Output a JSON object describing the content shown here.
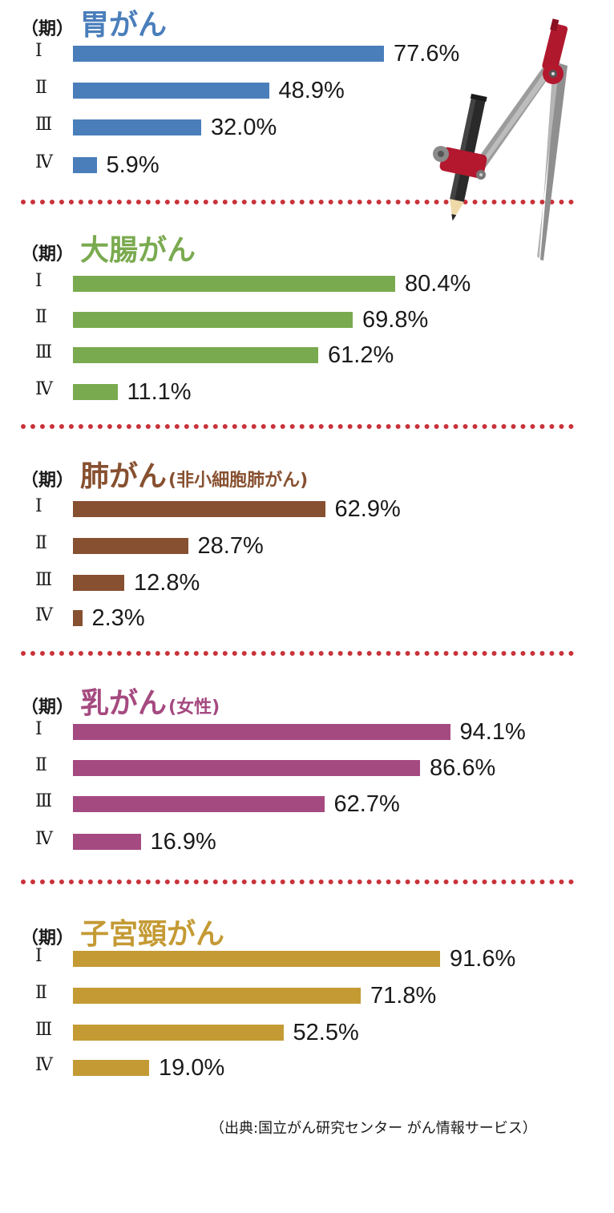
{
  "period_label": "（期）",
  "stage_labels": [
    "Ⅰ",
    "Ⅱ",
    "Ⅲ",
    "Ⅳ"
  ],
  "chart_data": [
    {
      "type": "bar",
      "title": "胃がん",
      "subtitle": "",
      "color": "#4a7ebb",
      "categories": [
        "Ⅰ",
        "Ⅱ",
        "Ⅲ",
        "Ⅳ"
      ],
      "values": [
        77.6,
        48.9,
        32.0,
        5.9
      ],
      "labels": [
        "77.6%",
        "48.9%",
        "32.0%",
        "5.9%"
      ],
      "xlim": [
        0,
        100
      ],
      "grid": false,
      "orientation": "horizontal"
    },
    {
      "type": "bar",
      "title": "大腸がん",
      "subtitle": "",
      "color": "#7aaa4f",
      "categories": [
        "Ⅰ",
        "Ⅱ",
        "Ⅲ",
        "Ⅳ"
      ],
      "values": [
        80.4,
        69.8,
        61.2,
        11.1
      ],
      "labels": [
        "80.4%",
        "69.8%",
        "61.2%",
        "11.1%"
      ],
      "xlim": [
        0,
        100
      ],
      "grid": false,
      "orientation": "horizontal"
    },
    {
      "type": "bar",
      "title": "肺がん",
      "subtitle": "(非小細胞肺がん)",
      "color": "#875030",
      "categories": [
        "Ⅰ",
        "Ⅱ",
        "Ⅲ",
        "Ⅳ"
      ],
      "values": [
        62.9,
        28.7,
        12.8,
        2.3
      ],
      "labels": [
        "62.9%",
        "28.7%",
        "12.8%",
        "2.3%"
      ],
      "xlim": [
        0,
        100
      ],
      "grid": false,
      "orientation": "horizontal"
    },
    {
      "type": "bar",
      "title": "乳がん",
      "subtitle": "(女性)",
      "color": "#a54a80",
      "categories": [
        "Ⅰ",
        "Ⅱ",
        "Ⅲ",
        "Ⅳ"
      ],
      "values": [
        94.1,
        86.6,
        62.7,
        16.9
      ],
      "labels": [
        "94.1%",
        "86.6%",
        "62.7%",
        "16.9%"
      ],
      "xlim": [
        0,
        100
      ],
      "grid": false,
      "orientation": "horizontal"
    },
    {
      "type": "bar",
      "title": "子宮頸がん",
      "subtitle": "",
      "color": "#c49a34",
      "categories": [
        "Ⅰ",
        "Ⅱ",
        "Ⅲ",
        "Ⅳ"
      ],
      "values": [
        91.6,
        71.8,
        52.5,
        19.0
      ],
      "labels": [
        "91.6%",
        "71.8%",
        "52.5%",
        "19.0%"
      ],
      "xlim": [
        0,
        100
      ],
      "grid": false,
      "orientation": "horizontal"
    }
  ],
  "source": "（出典:国立がん研究センター がん情報サービス）",
  "decoration": {
    "icon": "pencil-and-compass-icon"
  }
}
